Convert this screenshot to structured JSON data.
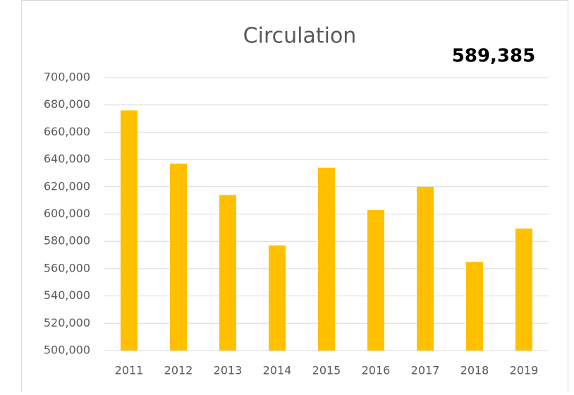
{
  "chart_data": {
    "type": "bar",
    "title": "Circulation",
    "annotation": "589,385",
    "categories": [
      "2011",
      "2012",
      "2013",
      "2014",
      "2015",
      "2016",
      "2017",
      "2018",
      "2019"
    ],
    "values": [
      676000,
      637000,
      614000,
      577000,
      634000,
      603000,
      620000,
      565000,
      589385
    ],
    "color": "#ffc000",
    "ylim": [
      500000,
      700000
    ],
    "yticks": [
      {
        "value": 500000,
        "label": "500,000"
      },
      {
        "value": 520000,
        "label": "520,000"
      },
      {
        "value": 540000,
        "label": "540,000"
      },
      {
        "value": 560000,
        "label": "560,000"
      },
      {
        "value": 580000,
        "label": "580,000"
      },
      {
        "value": 600000,
        "label": "600,000"
      },
      {
        "value": 620000,
        "label": "620,000"
      },
      {
        "value": 640000,
        "label": "640,000"
      },
      {
        "value": 660000,
        "label": "660,000"
      },
      {
        "value": 680000,
        "label": "680,000"
      },
      {
        "value": 700000,
        "label": "700,000"
      }
    ],
    "grid": true
  }
}
